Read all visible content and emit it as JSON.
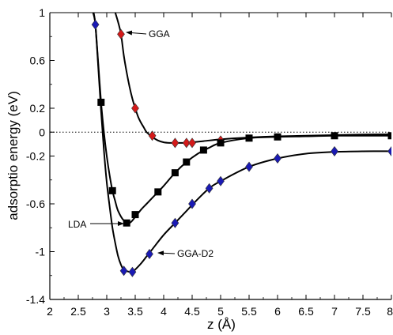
{
  "chart_data": {
    "type": "line",
    "xlabel": "z (Å)",
    "ylabel": "adsorptio energy (eV)",
    "xlim": [
      2,
      8
    ],
    "ylim": [
      -1.4,
      1.0
    ],
    "xticks": [
      2,
      2.5,
      3,
      3.5,
      4,
      4.5,
      5,
      5.5,
      6,
      6.5,
      7,
      7.5,
      8
    ],
    "yticks": [
      -1.4,
      -1,
      -0.6,
      -0.2,
      0,
      0.2,
      0.6,
      1
    ],
    "xtick_labels": [
      "2",
      "2.5",
      "3",
      "3.5",
      "4",
      "4.5",
      "5",
      "5.5",
      "6",
      "6.5",
      "7",
      "7.5",
      "8"
    ],
    "ytick_labels": [
      "-1.4",
      "-1",
      "-0.6",
      "-0.2",
      "0",
      "0.2",
      "0.6",
      "1"
    ],
    "zero_line": "dotted",
    "grid": false,
    "series": [
      {
        "name": "GGA",
        "marker": "diamond",
        "color": "#d41a1a",
        "x": [
          3.25,
          3.5,
          3.8,
          4.2,
          4.4,
          4.5,
          5.0
        ],
        "y": [
          0.82,
          0.2,
          -0.03,
          -0.09,
          -0.09,
          -0.09,
          -0.07
        ],
        "curve": {
          "x": [
            3.15,
            3.2,
            3.25,
            3.3,
            3.35,
            3.4,
            3.45,
            3.5,
            3.55,
            3.6,
            3.65,
            3.7,
            3.8,
            3.9,
            4.0,
            4.1,
            4.2,
            4.3,
            4.4,
            4.5,
            4.7,
            5.0,
            5.5,
            6.0,
            6.5,
            7.0,
            7.5,
            8.0
          ],
          "y": [
            1.0,
            0.92,
            0.82,
            0.64,
            0.5,
            0.38,
            0.28,
            0.2,
            0.13,
            0.08,
            0.04,
            0.0,
            -0.04,
            -0.07,
            -0.085,
            -0.09,
            -0.09,
            -0.09,
            -0.09,
            -0.085,
            -0.075,
            -0.06,
            -0.045,
            -0.035,
            -0.03,
            -0.025,
            -0.02,
            -0.018
          ]
        },
        "annotation": "GGA"
      },
      {
        "name": "LDA",
        "marker": "square",
        "color": "#000000",
        "x": [
          2.9,
          3.1,
          3.35,
          3.5,
          3.9,
          4.2,
          4.4,
          4.7,
          5.0,
          5.5,
          6.0,
          7.0,
          8.0
        ],
        "y": [
          0.25,
          -0.49,
          -0.76,
          -0.69,
          -0.5,
          -0.34,
          -0.25,
          -0.15,
          -0.09,
          -0.05,
          -0.04,
          -0.03,
          -0.03
        ],
        "curve": {
          "x": [
            2.77,
            2.8,
            2.85,
            2.9,
            2.95,
            3.0,
            3.05,
            3.1,
            3.15,
            3.2,
            3.3,
            3.4,
            3.5,
            3.6,
            3.7,
            3.8,
            3.9,
            4.0,
            4.2,
            4.4,
            4.6,
            4.8,
            5.0,
            5.5,
            6.0,
            6.5,
            7.0,
            7.5,
            8.0
          ],
          "y": [
            1.0,
            0.9,
            0.58,
            0.25,
            0.0,
            -0.2,
            -0.36,
            -0.49,
            -0.58,
            -0.66,
            -0.74,
            -0.76,
            -0.71,
            -0.65,
            -0.6,
            -0.55,
            -0.5,
            -0.45,
            -0.34,
            -0.25,
            -0.18,
            -0.13,
            -0.09,
            -0.05,
            -0.04,
            -0.035,
            -0.03,
            -0.03,
            -0.03
          ]
        },
        "annotation": "LDA"
      },
      {
        "name": "GGA-D2",
        "marker": "diamond",
        "color": "#1a1ab4",
        "x": [
          2.8,
          3.3,
          3.45,
          3.75,
          4.2,
          4.5,
          4.8,
          5.0,
          5.5,
          6.0,
          7.0,
          8.0
        ],
        "y": [
          0.9,
          -1.16,
          -1.17,
          -1.02,
          -0.76,
          -0.6,
          -0.47,
          -0.41,
          -0.29,
          -0.22,
          -0.16,
          -0.16
        ],
        "curve": {
          "x": [
            2.76,
            2.8,
            2.85,
            2.9,
            2.95,
            3.0,
            3.05,
            3.1,
            3.15,
            3.2,
            3.25,
            3.3,
            3.4,
            3.45,
            3.5,
            3.6,
            3.7,
            3.8,
            4.0,
            4.2,
            4.4,
            4.6,
            4.8,
            5.0,
            5.5,
            6.0,
            6.5,
            7.0,
            7.5,
            8.0
          ],
          "y": [
            1.0,
            0.9,
            0.55,
            0.18,
            -0.15,
            -0.42,
            -0.62,
            -0.8,
            -0.93,
            -1.04,
            -1.11,
            -1.15,
            -1.17,
            -1.17,
            -1.15,
            -1.1,
            -1.04,
            -0.98,
            -0.86,
            -0.76,
            -0.66,
            -0.56,
            -0.47,
            -0.41,
            -0.29,
            -0.22,
            -0.18,
            -0.165,
            -0.16,
            -0.16
          ]
        },
        "annotation": "GGA-D2"
      }
    ]
  }
}
